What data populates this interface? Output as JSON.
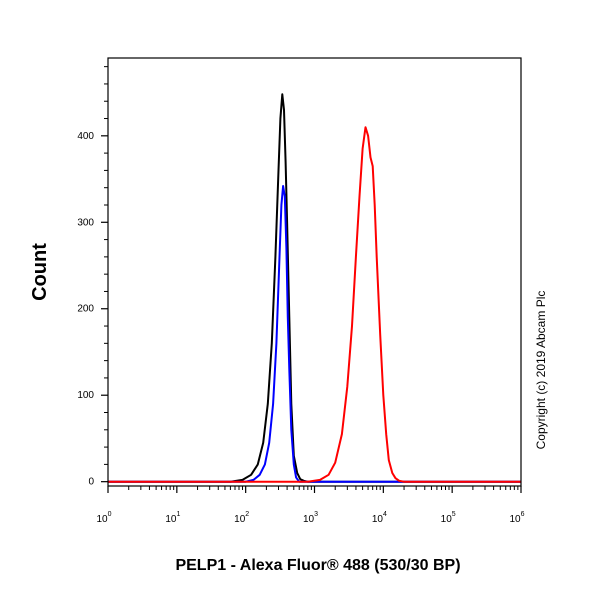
{
  "chart_data": {
    "type": "line",
    "xlabel": "PELP1 - Alexa Fluor® 488 (530/30 BP)",
    "ylabel": "Count",
    "xscale": "log",
    "xlim": [
      1,
      1000000
    ],
    "ylim": [
      -5,
      490
    ],
    "x_ticks": [
      {
        "value": 1,
        "base": "10",
        "exp": "0"
      },
      {
        "value": 10,
        "base": "10",
        "exp": "1"
      },
      {
        "value": 100,
        "base": "10",
        "exp": "2"
      },
      {
        "value": 1000,
        "base": "10",
        "exp": "3"
      },
      {
        "value": 10000,
        "base": "10",
        "exp": "4"
      },
      {
        "value": 100000,
        "base": "10",
        "exp": "5"
      },
      {
        "value": 1000000,
        "base": "10",
        "exp": "6"
      }
    ],
    "y_ticks": [
      0,
      100,
      200,
      300,
      400
    ],
    "grid": false,
    "annotation": "Copyright (c) 2019 Abcam Plc",
    "series": [
      {
        "color": "#000000",
        "x": [
          1,
          60,
          90,
          120,
          150,
          180,
          210,
          240,
          270,
          300,
          320,
          340,
          360,
          380,
          400,
          430,
          460,
          500,
          560,
          620,
          700,
          800,
          1000000
        ],
        "y": [
          0,
          0,
          2,
          8,
          20,
          45,
          90,
          160,
          260,
          360,
          420,
          448,
          430,
          370,
          300,
          190,
          90,
          30,
          10,
          3,
          1,
          0,
          0
        ]
      },
      {
        "color": "#0000ff",
        "x": [
          1,
          100,
          130,
          160,
          190,
          220,
          250,
          280,
          310,
          330,
          350,
          370,
          390,
          410,
          430,
          460,
          500,
          540,
          600,
          1000000
        ],
        "y": [
          0,
          0,
          2,
          8,
          20,
          45,
          90,
          160,
          260,
          320,
          342,
          330,
          270,
          190,
          130,
          60,
          20,
          5,
          0,
          0
        ]
      },
      {
        "color": "#ff0000",
        "x": [
          1,
          800,
          1200,
          1600,
          2000,
          2500,
          3000,
          3500,
          4000,
          4500,
          5000,
          5500,
          6000,
          6500,
          7000,
          7500,
          8000,
          9000,
          10000,
          11000,
          12000,
          13500,
          15000,
          17000,
          20000,
          1000000
        ],
        "y": [
          0,
          0,
          2,
          8,
          22,
          55,
          110,
          180,
          260,
          330,
          385,
          410,
          400,
          375,
          365,
          320,
          260,
          170,
          100,
          55,
          25,
          10,
          4,
          1,
          0,
          0
        ]
      }
    ]
  }
}
